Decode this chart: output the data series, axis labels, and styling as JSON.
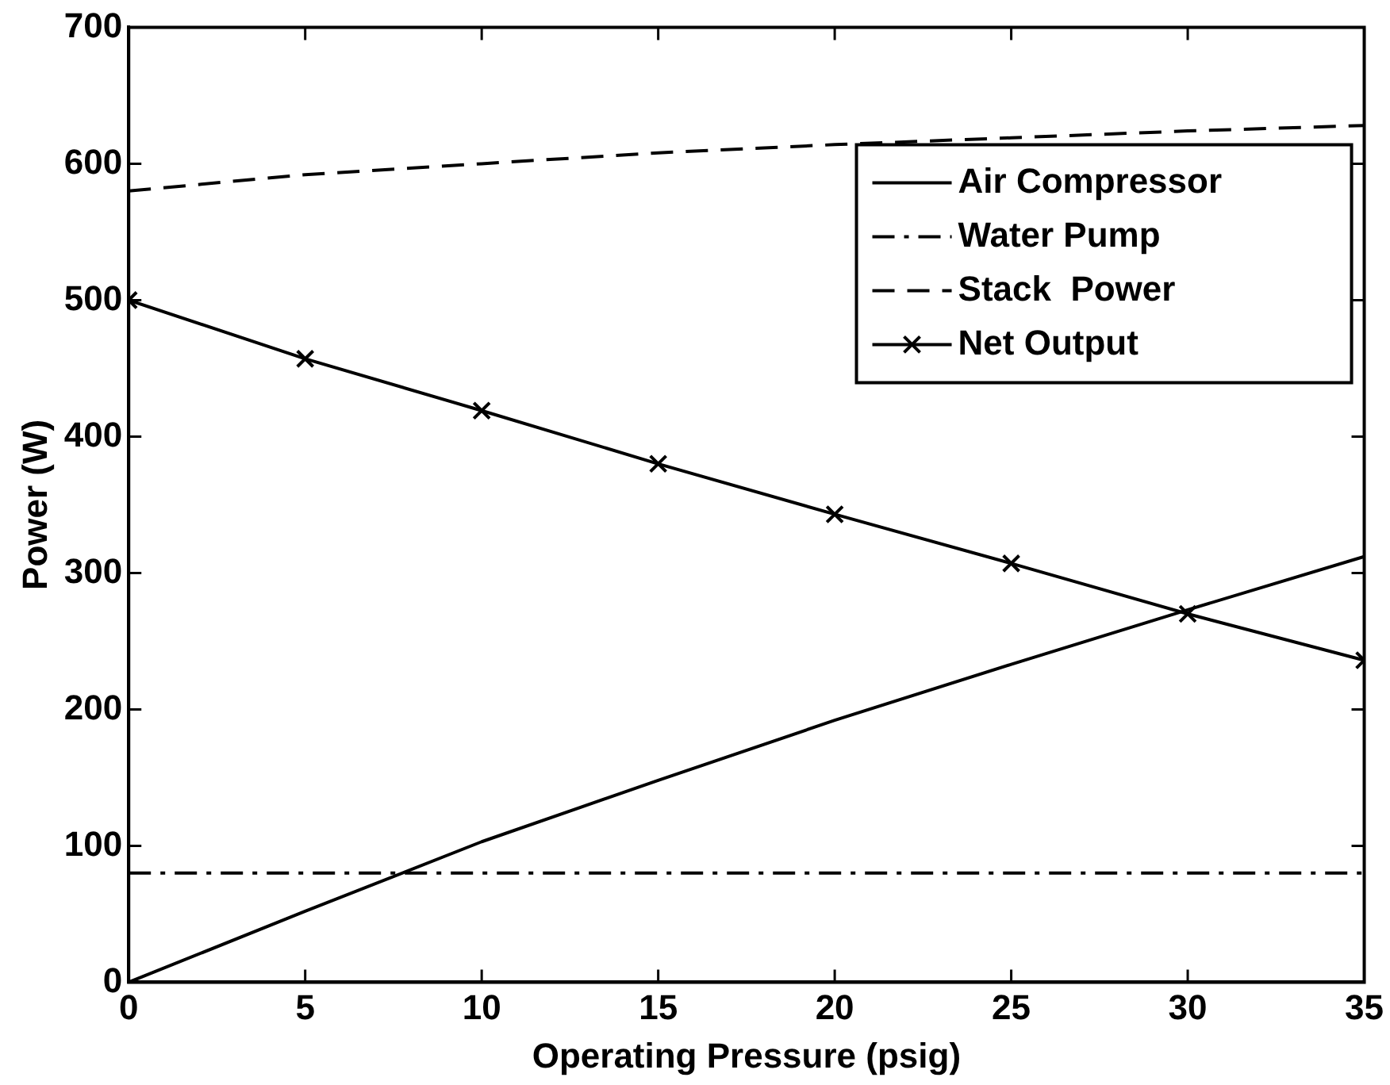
{
  "chart_data": {
    "type": "line",
    "xlabel": "Operating Pressure (psig)",
    "ylabel": "Power (W)",
    "x": [
      0,
      5,
      10,
      15,
      20,
      25,
      30,
      35
    ],
    "xlim": [
      0,
      35
    ],
    "xticks": [
      0,
      5,
      10,
      15,
      20,
      25,
      30,
      35
    ],
    "ylim": [
      0,
      700
    ],
    "yticks": [
      0,
      100,
      200,
      300,
      400,
      500,
      600,
      700
    ],
    "grid": false,
    "legend": "top right",
    "series": [
      {
        "name": "Air Compressor",
        "color": "#000000",
        "line_style": "solid",
        "marker": "none",
        "values": [
          0,
          52,
          103,
          148,
          192,
          233,
          273,
          312
        ]
      },
      {
        "name": "Water Pump",
        "color": "#000000",
        "line_style": "dashdot",
        "marker": "none",
        "values": [
          80,
          80,
          80,
          80,
          80,
          80,
          80,
          80
        ]
      },
      {
        "name": "Stack  Power",
        "color": "#000000",
        "line_style": "dashed",
        "marker": "none",
        "values": [
          580,
          592,
          600,
          608,
          614,
          619,
          624,
          628
        ]
      },
      {
        "name": "Net Output",
        "color": "#000000",
        "line_style": "solid",
        "marker": "cross",
        "values": [
          500,
          457,
          419,
          380,
          343,
          307,
          270,
          236
        ]
      }
    ]
  }
}
